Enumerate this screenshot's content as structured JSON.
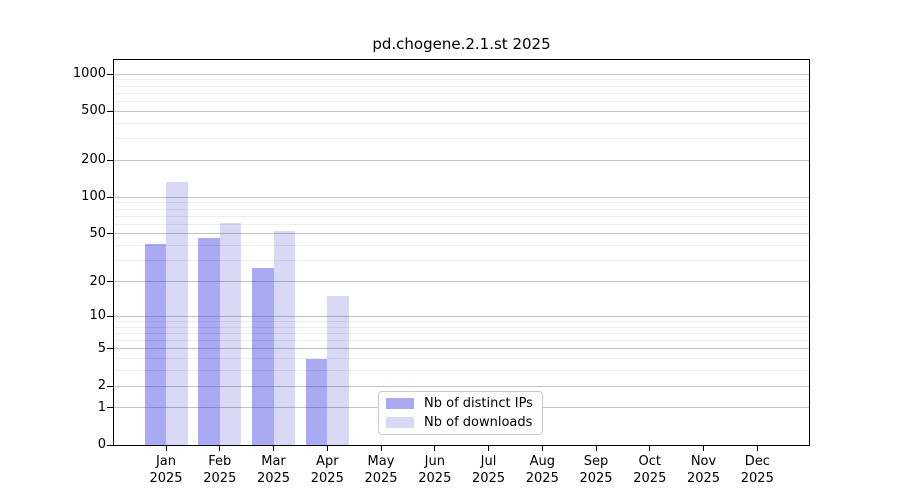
{
  "title": "pd.chogene.2.1.st 2025",
  "chart_data": {
    "type": "bar",
    "title": "pd.chogene.2.1.st 2025",
    "x_axis": {
      "categories": [
        "Jan",
        "Feb",
        "Mar",
        "Apr",
        "May",
        "Jun",
        "Jul",
        "Aug",
        "Sep",
        "Oct",
        "Nov",
        "Dec"
      ],
      "sub_label": "2025"
    },
    "y_axis": {
      "scale": "log1p",
      "ticks": [
        0,
        1,
        2,
        5,
        10,
        20,
        50,
        100,
        200,
        500,
        1000
      ],
      "minor_gridlines": [
        3,
        4,
        6,
        7,
        8,
        9,
        30,
        40,
        60,
        70,
        80,
        90,
        300,
        400,
        600,
        700,
        800,
        900
      ],
      "ylim": [
        0,
        1300
      ],
      "grid": "on"
    },
    "series": [
      {
        "name": "Nb of distinct IPs",
        "color": "#a9a9f4",
        "values": [
          41,
          46,
          26,
          4,
          null,
          null,
          null,
          null,
          null,
          null,
          null,
          null
        ]
      },
      {
        "name": "Nb of downloads",
        "color": "#d9d9f5",
        "values": [
          134,
          62,
          53,
          15,
          null,
          null,
          null,
          null,
          null,
          null,
          null,
          null
        ]
      }
    ],
    "legend_position": "lower center"
  }
}
